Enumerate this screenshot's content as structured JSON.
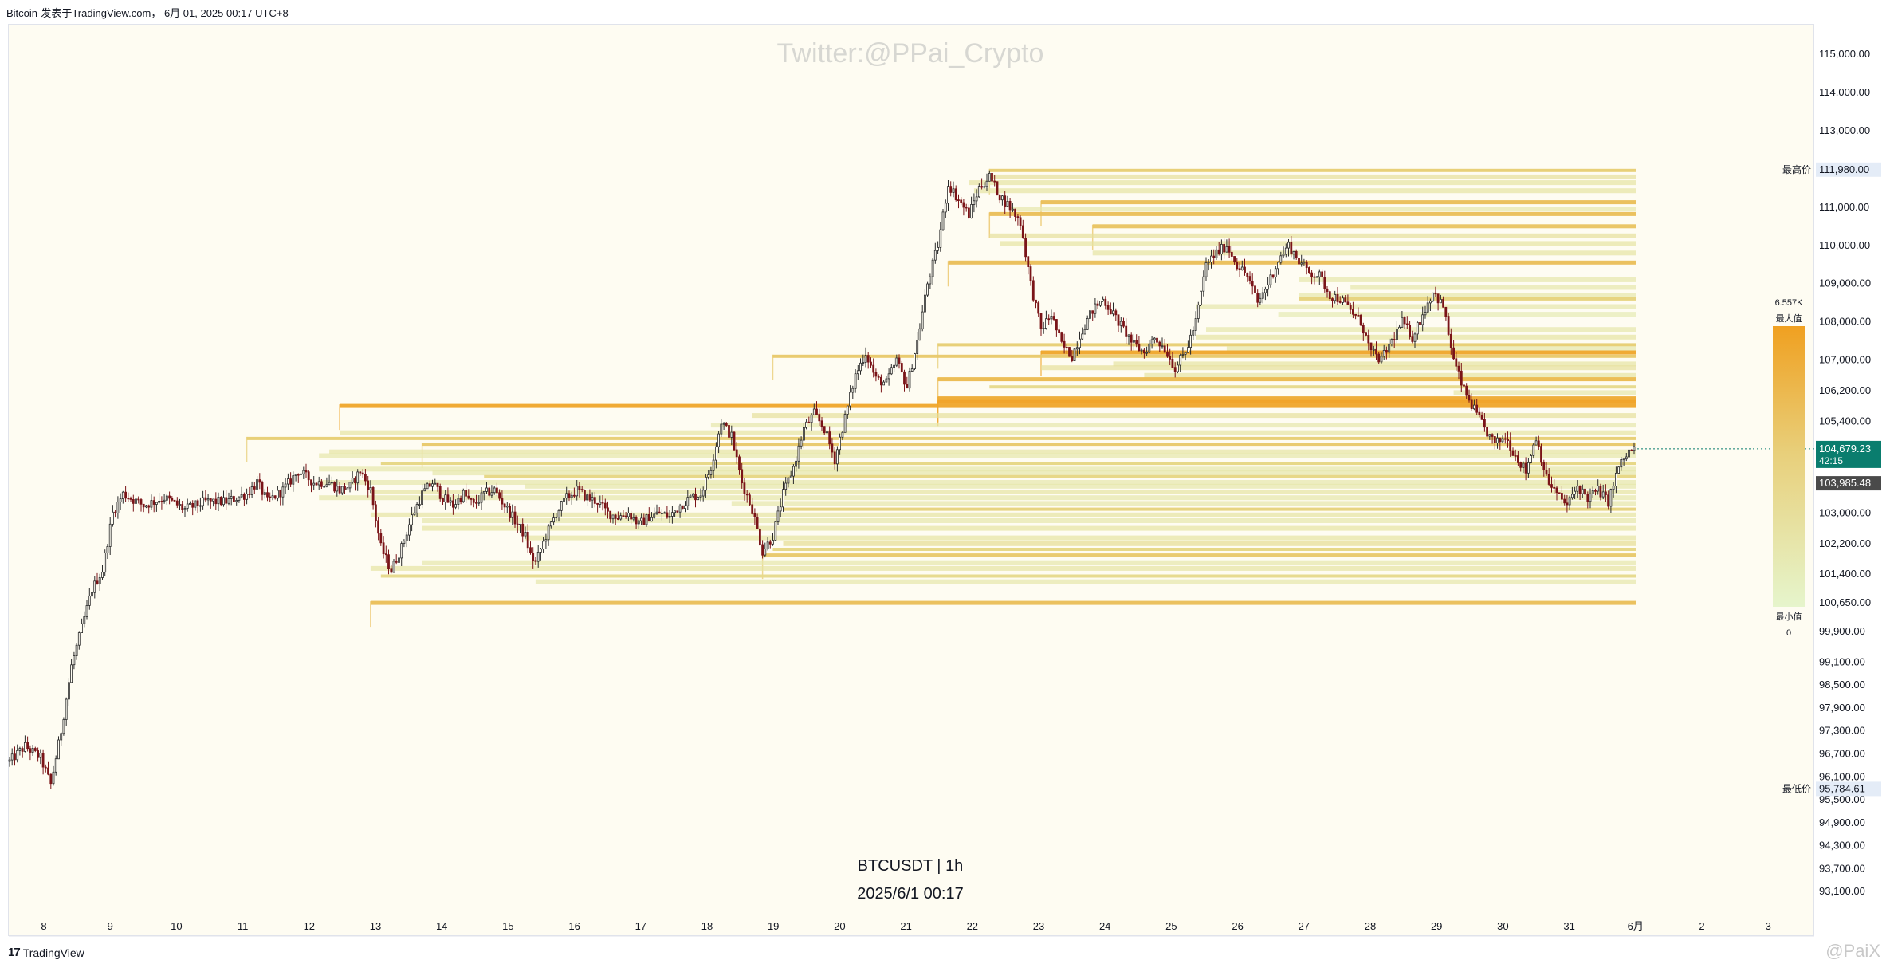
{
  "header": {
    "title": "Bitcoin-发表于TradingView.com， 6月 01, 2025 00:17 UTC+8"
  },
  "watermark": {
    "text": "Twitter:@PPai_Crypto"
  },
  "symbol_label": {
    "symbol": "BTCUSDT | 1h",
    "datetime": "2025/6/1 00:17"
  },
  "footer": {
    "logo_mark": "17",
    "logo_text": "TradingView",
    "corner_mark": "@PaiX"
  },
  "colors": {
    "background": "#fefcf2",
    "candle": "#2a2a2a",
    "candle_down": "#7a1418",
    "heat_low": "#e6f5cc",
    "heat_mid": "#e6d27a",
    "heat_high": "#f0a020",
    "price_badge": "#0a7d6e"
  },
  "chart_data": {
    "type": "candlestick-with-liquidity-heatmap",
    "timeframe": "1h",
    "y_axis": {
      "ticks": [
        "115,000.00",
        "114,000.00",
        "113,000.00",
        "111,000.00",
        "110,000.00",
        "109,000.00",
        "108,000.00",
        "107,000.00",
        "106,200.00",
        "105,400.00",
        "103,000.00",
        "102,200.00",
        "101,400.00",
        "100,650.00",
        "99,900.00",
        "99,100.00",
        "98,500.00",
        "97,900.00",
        "97,300.00",
        "96,700.00",
        "96,100.00",
        "95,500.00",
        "94,900.00",
        "94,300.00",
        "93,700.00",
        "93,100.00"
      ],
      "tick_values": [
        115000,
        114000,
        113000,
        111000,
        110000,
        109000,
        108000,
        107000,
        106200,
        105400,
        103000,
        102200,
        101400,
        100650,
        99900,
        99100,
        98500,
        97900,
        97300,
        96700,
        96100,
        95500,
        94900,
        94300,
        93700,
        93100
      ]
    },
    "x_axis": {
      "ticks": [
        "8",
        "9",
        "10",
        "11",
        "12",
        "13",
        "14",
        "15",
        "16",
        "17",
        "18",
        "19",
        "20",
        "21",
        "22",
        "23",
        "24",
        "25",
        "26",
        "27",
        "28",
        "29",
        "30",
        "31",
        "6月",
        "2",
        "3"
      ]
    },
    "high_label": {
      "label": "最高价",
      "value": "111,980.00",
      "price": 111980
    },
    "low_label": {
      "label": "最低价",
      "value": "95,784.61",
      "price": 95784.61
    },
    "current_price": {
      "value": "104,679.23",
      "countdown": "42:15",
      "price": 104679.23
    },
    "secondary_price": {
      "value": "103,985.48",
      "price": 103985.48
    },
    "heatmap_legend": {
      "max_value": "6.557K",
      "max_label": "最大值",
      "min_label": "最小值",
      "min_value": "0"
    },
    "price_path": [
      [
        0,
        96500
      ],
      [
        3,
        96900
      ],
      [
        6,
        96600
      ],
      [
        8,
        95900
      ],
      [
        10,
        97300
      ],
      [
        12,
        99000
      ],
      [
        14,
        100000
      ],
      [
        16,
        101000
      ],
      [
        18,
        101500
      ],
      [
        20,
        103000
      ],
      [
        22,
        103500
      ],
      [
        26,
        103200
      ],
      [
        30,
        103400
      ],
      [
        34,
        103100
      ],
      [
        38,
        103300
      ],
      [
        42,
        103300
      ],
      [
        46,
        103500
      ],
      [
        48,
        103800
      ],
      [
        50,
        103300
      ],
      [
        53,
        103600
      ],
      [
        56,
        104100
      ],
      [
        59,
        103800
      ],
      [
        62,
        103800
      ],
      [
        64,
        103600
      ],
      [
        66,
        103700
      ],
      [
        68,
        104100
      ],
      [
        70,
        103600
      ],
      [
        72,
        102100
      ],
      [
        74,
        101500
      ],
      [
        76,
        102100
      ],
      [
        78,
        102900
      ],
      [
        80,
        103500
      ],
      [
        82,
        103800
      ],
      [
        84,
        103400
      ],
      [
        86,
        103200
      ],
      [
        88,
        103500
      ],
      [
        90,
        103200
      ],
      [
        92,
        103500
      ],
      [
        94,
        103600
      ],
      [
        96,
        103200
      ],
      [
        98,
        102800
      ],
      [
        100,
        102400
      ],
      [
        101,
        101900
      ],
      [
        102,
        101700
      ],
      [
        104,
        102400
      ],
      [
        106,
        103000
      ],
      [
        108,
        103400
      ],
      [
        110,
        103600
      ],
      [
        112,
        103400
      ],
      [
        114,
        103300
      ],
      [
        116,
        103000
      ],
      [
        118,
        102900
      ],
      [
        120,
        103000
      ],
      [
        122,
        102700
      ],
      [
        124,
        102900
      ],
      [
        126,
        103000
      ],
      [
        128,
        102900
      ],
      [
        130,
        103200
      ],
      [
        132,
        103400
      ],
      [
        134,
        103500
      ],
      [
        136,
        104200
      ],
      [
        138,
        105400
      ],
      [
        140,
        105000
      ],
      [
        142,
        103800
      ],
      [
        144,
        103100
      ],
      [
        146,
        102000
      ],
      [
        148,
        102400
      ],
      [
        150,
        103500
      ],
      [
        152,
        104200
      ],
      [
        154,
        105200
      ],
      [
        156,
        105600
      ],
      [
        158,
        105200
      ],
      [
        160,
        104400
      ],
      [
        162,
        105500
      ],
      [
        164,
        106600
      ],
      [
        166,
        107200
      ],
      [
        168,
        106500
      ],
      [
        170,
        106400
      ],
      [
        172,
        107000
      ],
      [
        174,
        106300
      ],
      [
        176,
        107500
      ],
      [
        178,
        109000
      ],
      [
        180,
        110000
      ],
      [
        182,
        111600
      ],
      [
        184,
        111200
      ],
      [
        186,
        110800
      ],
      [
        188,
        111500
      ],
      [
        190,
        111800
      ],
      [
        192,
        111300
      ],
      [
        194,
        111000
      ],
      [
        196,
        110600
      ],
      [
        198,
        109000
      ],
      [
        200,
        107800
      ],
      [
        202,
        108200
      ],
      [
        204,
        107400
      ],
      [
        206,
        107100
      ],
      [
        208,
        107800
      ],
      [
        210,
        108300
      ],
      [
        212,
        108600
      ],
      [
        214,
        108200
      ],
      [
        216,
        107800
      ],
      [
        218,
        107400
      ],
      [
        220,
        107200
      ],
      [
        222,
        107600
      ],
      [
        224,
        107300
      ],
      [
        226,
        106800
      ],
      [
        228,
        107200
      ],
      [
        230,
        108000
      ],
      [
        232,
        109500
      ],
      [
        234,
        109800
      ],
      [
        236,
        110000
      ],
      [
        238,
        109500
      ],
      [
        240,
        109200
      ],
      [
        242,
        108500
      ],
      [
        244,
        109000
      ],
      [
        246,
        109600
      ],
      [
        248,
        110000
      ],
      [
        250,
        109600
      ],
      [
        252,
        109300
      ],
      [
        254,
        109200
      ],
      [
        256,
        108700
      ],
      [
        258,
        108600
      ],
      [
        260,
        108300
      ],
      [
        262,
        108000
      ],
      [
        264,
        107200
      ],
      [
        266,
        107000
      ],
      [
        268,
        107500
      ],
      [
        270,
        108000
      ],
      [
        272,
        107600
      ],
      [
        274,
        108200
      ],
      [
        276,
        108800
      ],
      [
        278,
        108400
      ],
      [
        280,
        107000
      ],
      [
        282,
        106200
      ],
      [
        284,
        105700
      ],
      [
        286,
        105200
      ],
      [
        288,
        104800
      ],
      [
        290,
        105000
      ],
      [
        292,
        104500
      ],
      [
        294,
        104100
      ],
      [
        296,
        105000
      ],
      [
        298,
        103900
      ],
      [
        300,
        103500
      ],
      [
        302,
        103200
      ],
      [
        304,
        103700
      ],
      [
        306,
        103400
      ],
      [
        308,
        103600
      ],
      [
        310,
        103300
      ],
      [
        312,
        104200
      ],
      [
        314,
        104600
      ],
      [
        315,
        104679
      ]
    ],
    "liquidity_levels": [
      {
        "price": 111960,
        "x_start": 190,
        "intensity": 0.55
      },
      {
        "price": 111790,
        "x_start": 190,
        "intensity": 0.3
      },
      {
        "price": 111640,
        "x_start": 186,
        "intensity": 0.25
      },
      {
        "price": 111430,
        "x_start": 187,
        "intensity": 0.25
      },
      {
        "price": 111130,
        "x_start": 200,
        "intensity": 0.7
      },
      {
        "price": 110950,
        "x_start": 194,
        "intensity": 0.2
      },
      {
        "price": 110820,
        "x_start": 190,
        "intensity": 0.7
      },
      {
        "price": 110500,
        "x_start": 210,
        "intensity": 0.65
      },
      {
        "price": 110250,
        "x_start": 190,
        "intensity": 0.3
      },
      {
        "price": 110050,
        "x_start": 192,
        "intensity": 0.25
      },
      {
        "price": 109800,
        "x_start": 210,
        "intensity": 0.25
      },
      {
        "price": 109550,
        "x_start": 182,
        "intensity": 0.7
      },
      {
        "price": 109100,
        "x_start": 250,
        "intensity": 0.2
      },
      {
        "price": 108900,
        "x_start": 260,
        "intensity": 0.2
      },
      {
        "price": 108700,
        "x_start": 250,
        "intensity": 0.2
      },
      {
        "price": 108600,
        "x_start": 250,
        "intensity": 0.5
      },
      {
        "price": 108400,
        "x_start": 230,
        "intensity": 0.2
      },
      {
        "price": 108200,
        "x_start": 246,
        "intensity": 0.15
      },
      {
        "price": 107800,
        "x_start": 232,
        "intensity": 0.2
      },
      {
        "price": 107600,
        "x_start": 230,
        "intensity": 0.25
      },
      {
        "price": 107400,
        "x_start": 180,
        "intensity": 0.55
      },
      {
        "price": 107300,
        "x_start": 236,
        "intensity": 0.2
      },
      {
        "price": 107200,
        "x_start": 200,
        "intensity": 0.95
      },
      {
        "price": 107100,
        "x_start": 148,
        "intensity": 0.6
      },
      {
        "price": 106900,
        "x_start": 214,
        "intensity": 0.25
      },
      {
        "price": 106800,
        "x_start": 200,
        "intensity": 0.3
      },
      {
        "price": 106600,
        "x_start": 220,
        "intensity": 0.25
      },
      {
        "price": 106500,
        "x_start": 180,
        "intensity": 0.75
      },
      {
        "price": 106300,
        "x_start": 190,
        "intensity": 0.4
      },
      {
        "price": 106150,
        "x_start": 280,
        "intensity": 0.2
      },
      {
        "price": 106000,
        "x_start": 180,
        "intensity": 0.9
      },
      {
        "price": 105900,
        "x_start": 180,
        "intensity": 1.0
      },
      {
        "price": 105800,
        "x_start": 64,
        "intensity": 0.95
      },
      {
        "price": 105550,
        "x_start": 144,
        "intensity": 0.3
      },
      {
        "price": 105300,
        "x_start": 136,
        "intensity": 0.2
      },
      {
        "price": 105100,
        "x_start": 64,
        "intensity": 0.25
      },
      {
        "price": 104950,
        "x_start": 46,
        "intensity": 0.55
      },
      {
        "price": 104800,
        "x_start": 80,
        "intensity": 0.6
      },
      {
        "price": 104600,
        "x_start": 62,
        "intensity": 0.25
      },
      {
        "price": 104500,
        "x_start": 60,
        "intensity": 0.2
      },
      {
        "price": 104300,
        "x_start": 72,
        "intensity": 0.45
      },
      {
        "price": 104150,
        "x_start": 60,
        "intensity": 0.2
      },
      {
        "price": 104050,
        "x_start": 82,
        "intensity": 0.2
      },
      {
        "price": 103950,
        "x_start": 92,
        "intensity": 0.45
      },
      {
        "price": 103800,
        "x_start": 60,
        "intensity": 0.2
      },
      {
        "price": 103700,
        "x_start": 100,
        "intensity": 0.2
      },
      {
        "price": 103550,
        "x_start": 70,
        "intensity": 0.25
      },
      {
        "price": 103400,
        "x_start": 60,
        "intensity": 0.2
      },
      {
        "price": 103250,
        "x_start": 140,
        "intensity": 0.2
      },
      {
        "price": 103100,
        "x_start": 150,
        "intensity": 0.5
      },
      {
        "price": 102950,
        "x_start": 70,
        "intensity": 0.25
      },
      {
        "price": 102800,
        "x_start": 80,
        "intensity": 0.2
      },
      {
        "price": 102600,
        "x_start": 80,
        "intensity": 0.25
      },
      {
        "price": 102350,
        "x_start": 100,
        "intensity": 0.25
      },
      {
        "price": 102200,
        "x_start": 150,
        "intensity": 0.35
      },
      {
        "price": 102050,
        "x_start": 148,
        "intensity": 0.45
      },
      {
        "price": 101900,
        "x_start": 146,
        "intensity": 0.6
      },
      {
        "price": 101700,
        "x_start": 80,
        "intensity": 0.2
      },
      {
        "price": 101550,
        "x_start": 70,
        "intensity": 0.25
      },
      {
        "price": 101350,
        "x_start": 72,
        "intensity": 0.4
      },
      {
        "price": 101200,
        "x_start": 102,
        "intensity": 0.2
      },
      {
        "price": 100650,
        "x_start": 70,
        "intensity": 0.7
      }
    ],
    "candle_range": {
      "x_min": 0,
      "x_max": 315
    }
  }
}
